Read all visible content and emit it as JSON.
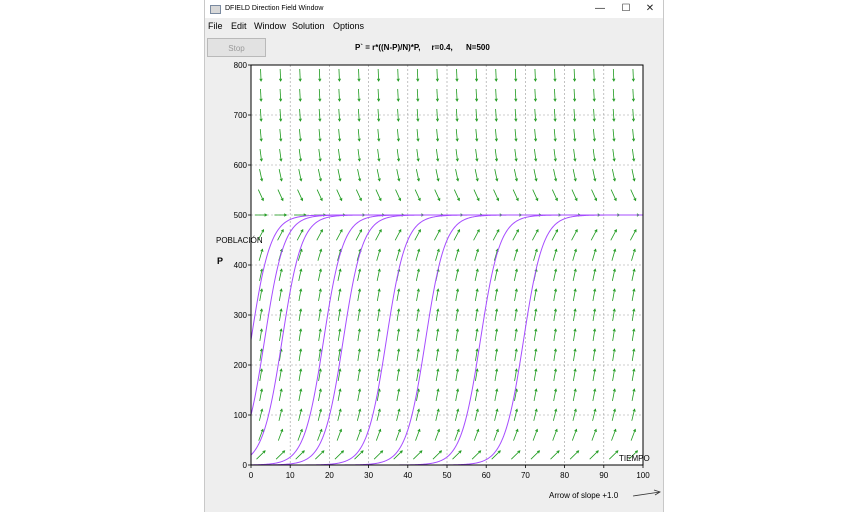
{
  "window": {
    "title": "DFIELD Direction Field Window",
    "controls": {
      "minimize": "—",
      "maximize": "☐",
      "close": "✕"
    }
  },
  "menu": [
    "File",
    "Edit",
    "Window",
    "Solution",
    "Options"
  ],
  "toolbar": {
    "stop_label": "Stop"
  },
  "equation": {
    "text": "P` = r*((N-P)/N)*P,",
    "r": "r=0.4,",
    "N": "N=500"
  },
  "plot": {
    "ylabel_top": "POBLACIÓN",
    "ylabel_letter": "P",
    "xlabel": "TIEMPO",
    "slope_note": "Arrow of slope +1.0",
    "colors": {
      "field_arrow": "#1e9a1e",
      "solution": "#a64dff",
      "grid": "#9a9a9a",
      "axis": "#000000"
    }
  },
  "chart_data": {
    "type": "line",
    "title": "P` = r*((N-P)/N)*P,   r=0.4,   N=500",
    "xlabel": "TIEMPO",
    "ylabel": "POBLACIÓN",
    "xlim": [
      0,
      100
    ],
    "ylim": [
      0,
      800
    ],
    "xticks": [
      0,
      10,
      20,
      30,
      40,
      50,
      60,
      70,
      80,
      90,
      100
    ],
    "yticks": [
      0,
      100,
      200,
      300,
      400,
      500,
      600,
      700,
      800
    ],
    "grid": true,
    "direction_field": {
      "r": 0.4,
      "N": 500
    },
    "series": [
      {
        "t0": 0,
        "P0": 250
      },
      {
        "t0": 0,
        "P0": 100
      },
      {
        "t0": 0,
        "P0": 20
      },
      {
        "t0": 3,
        "P0": 1
      },
      {
        "t0": 8,
        "P0": 1
      },
      {
        "t0": 19,
        "P0": 1
      },
      {
        "t0": 29,
        "P0": 1
      },
      {
        "t0": 43,
        "P0": 1
      },
      {
        "t0": 54,
        "P0": 1
      }
    ]
  }
}
